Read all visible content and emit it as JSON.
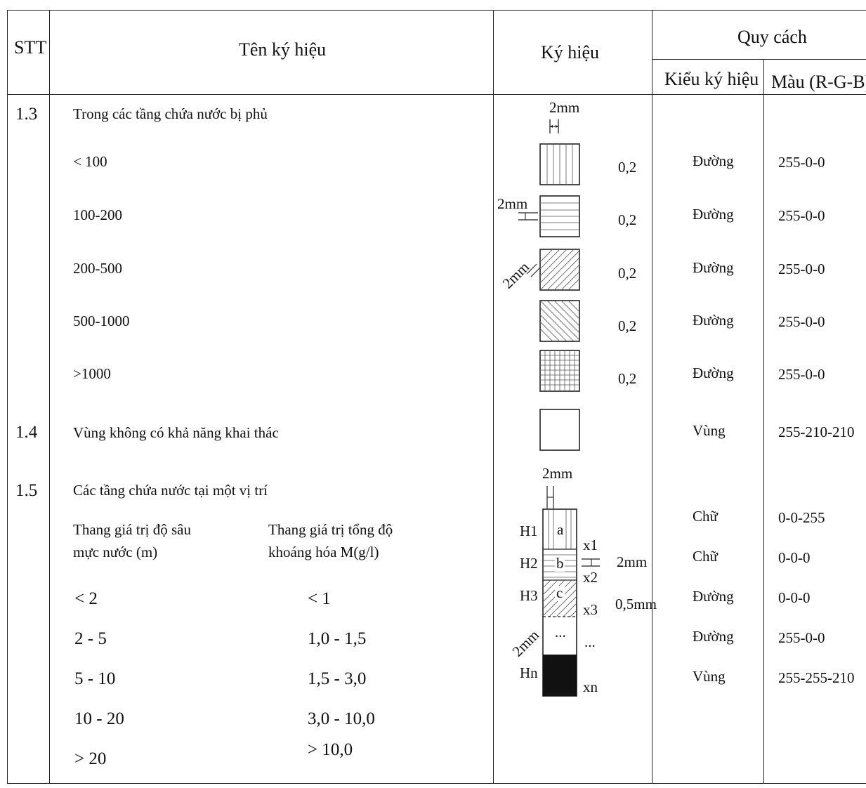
{
  "header": {
    "stt": "STT",
    "name": "Tên ký hiệu",
    "symbol": "Ký hiệu",
    "spec": "Quy cách",
    "type": "Kiểu ký hiệu",
    "color": "Màu (R-G-B)"
  },
  "sections": {
    "s13": {
      "stt": "1.3",
      "name": "Trong các tầng chứa nước bị phủ",
      "dim_label": "2mm"
    },
    "s14": {
      "stt": "1.4",
      "name": "Vùng không có khả năng khai thác",
      "type": "Vùng",
      "color": "255-210-210"
    },
    "s15": {
      "stt": "1.5",
      "name": "Các tầng chứa nước tại một vị trí",
      "depth_header_1": "Thang giá trị độ sâu",
      "depth_header_2": "mực nước (m)",
      "tds_header_1": "Thang giá trị tổng độ",
      "tds_header_2": "khoáng hóa M(g/l)",
      "dim_top": "2mm",
      "dim_mid": "2mm",
      "dim_thin": "0,5mm",
      "dim_diag": "2mm",
      "cell_a": "a",
      "cell_b": "b",
      "cell_c": "c",
      "cell_dots": "...",
      "x_dots": "..."
    }
  },
  "rows13": [
    {
      "label": "< 100",
      "width": "0,2",
      "type": "Đường",
      "color": "255-0-0",
      "pattern": "vertical-lines"
    },
    {
      "label": "100-200",
      "width": "0,2",
      "type": "Đường",
      "color": "255-0-0",
      "pattern": "horizontal-lines"
    },
    {
      "label": "200-500",
      "width": "0,2",
      "type": "Đường",
      "color": "255-0-0",
      "pattern": "diagonal-forward"
    },
    {
      "label": "500-1000",
      "width": "0,2",
      "type": "Đường",
      "color": "255-0-0",
      "pattern": "diagonal-backward"
    },
    {
      "label": ">1000",
      "width": "0,2",
      "type": "Đường",
      "color": "255-0-0",
      "pattern": "grid"
    }
  ],
  "row13_dims": [
    "2mm",
    "2mm"
  ],
  "depth_scale": [
    "< 2",
    "2 - 5",
    "5 - 10",
    "10 - 20",
    "> 20"
  ],
  "tds_scale": [
    "< 1",
    "1,0 - 1,5",
    "1,5 - 3,0",
    "3,0 - 10,0",
    "> 10,0"
  ],
  "h_labels": [
    "H1",
    "H2",
    "H3",
    "Hn"
  ],
  "x_labels": [
    "x1",
    "x2",
    "x3",
    "xn"
  ],
  "rows15_spec": [
    {
      "type": "Chữ",
      "color": "0-0-255"
    },
    {
      "type": "Chữ",
      "color": "0-0-0"
    },
    {
      "type": "Đường",
      "color": "0-0-0"
    },
    {
      "type": "Đường",
      "color": "255-0-0"
    },
    {
      "type": "Vùng",
      "color": "255-255-210"
    }
  ]
}
